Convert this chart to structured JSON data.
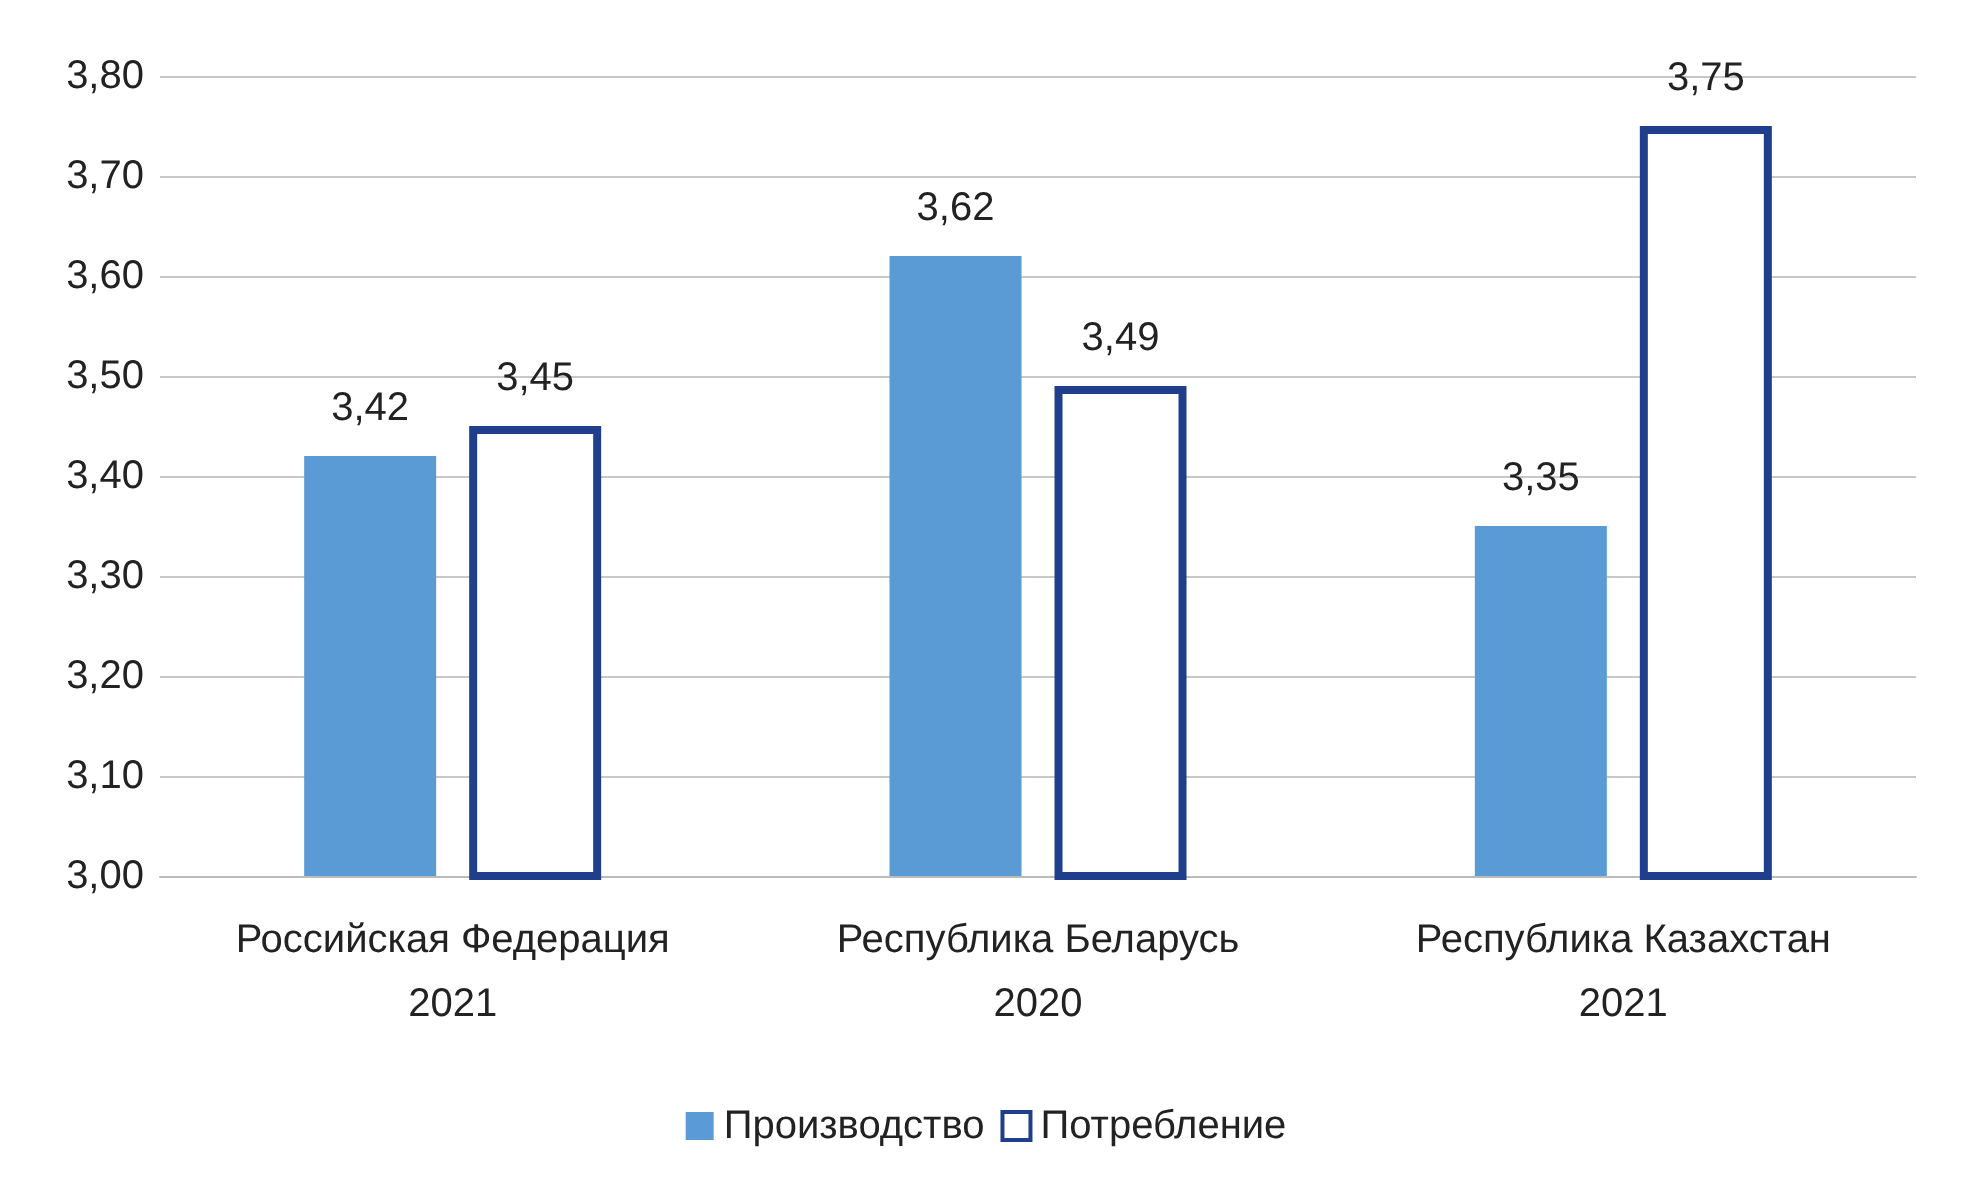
{
  "chart_data": {
    "type": "bar",
    "categories": [
      "Российская Федерация\n2021",
      "Республика Беларусь\n2020",
      "Республика Казахстан\n2021"
    ],
    "series": [
      {
        "name": "Производство",
        "color": "#5b9bd5",
        "values": [
          3.42,
          3.62,
          3.35
        ],
        "value_labels": [
          "3,42",
          "3,62",
          "3,35"
        ]
      },
      {
        "name": "Потребление",
        "color": "#1f3f8c",
        "values": [
          3.45,
          3.49,
          3.75
        ],
        "value_labels": [
          "3,45",
          "3,49",
          "3,75"
        ]
      }
    ],
    "ylim": [
      3.0,
      3.8
    ],
    "yticks": [
      {
        "value": 3.0,
        "label": "3,00"
      },
      {
        "value": 3.1,
        "label": "3,10"
      },
      {
        "value": 3.2,
        "label": "3,20"
      },
      {
        "value": 3.3,
        "label": "3,30"
      },
      {
        "value": 3.4,
        "label": "3,40"
      },
      {
        "value": 3.5,
        "label": "3,50"
      },
      {
        "value": 3.6,
        "label": "3,60"
      },
      {
        "value": 3.7,
        "label": "3,70"
      },
      {
        "value": 3.8,
        "label": "3,80"
      }
    ],
    "grid": "y",
    "legend": "bottom"
  }
}
